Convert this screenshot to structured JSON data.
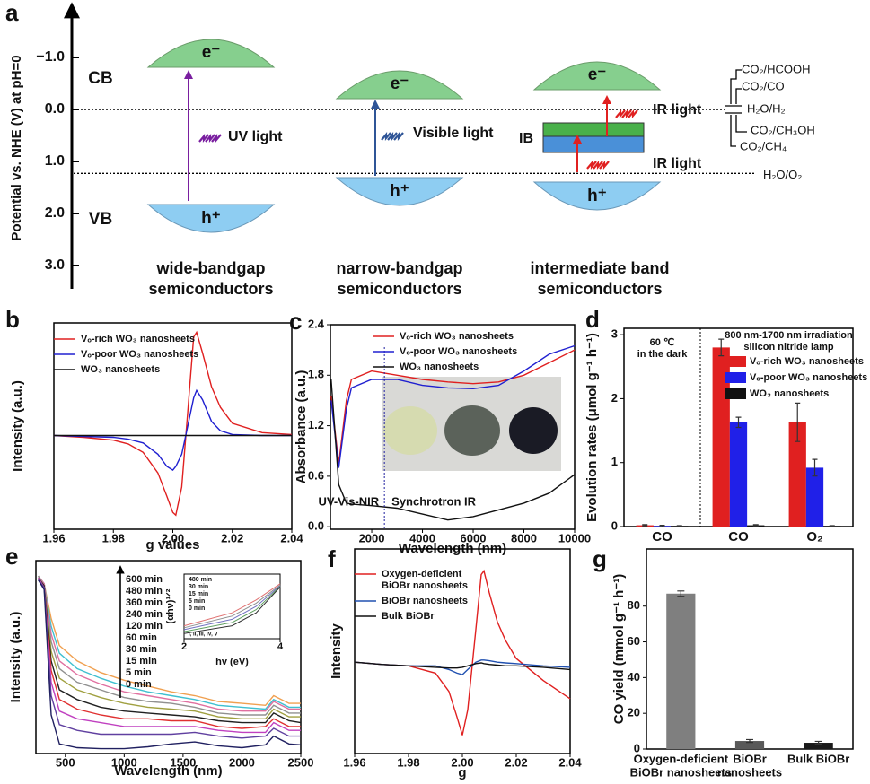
{
  "diagram": {
    "panel": "a",
    "axis_label": "Potential vs. NHE (V) at pH=0",
    "ticks": [
      {
        "value": -1,
        "label": "−1.0"
      },
      {
        "value": 0,
        "label": "0.0"
      },
      {
        "value": 1,
        "label": "1.0"
      },
      {
        "value": 2,
        "label": "2.0"
      },
      {
        "value": 3,
        "label": "3.0"
      }
    ],
    "cb": "CB",
    "vb": "VB",
    "electron": "e⁻",
    "hole": "h⁺",
    "semiconductors": [
      {
        "light": "UV light",
        "caption": [
          "wide-bandgap",
          "semiconductors"
        ]
      },
      {
        "light": "Visible light",
        "caption": [
          "narrow-bandgap",
          "semiconductors"
        ]
      },
      {
        "light": "IR light",
        "light2": "IR light",
        "ib": "IB",
        "caption": [
          "intermediate band",
          "semiconductors"
        ]
      }
    ],
    "potentials": [
      {
        "label": "H₂O/H₂",
        "value": 0
      },
      {
        "label": "H₂O/O₂",
        "value": 1.23
      }
    ],
    "couples": [
      "CO₂/HCOOH",
      "CO₂/CO",
      "CO₂/CH₃OH",
      "CO₂/CH₄"
    ]
  },
  "chart_data": [
    {
      "type": "line",
      "panel": "b",
      "xlabel": "g values",
      "ylabel": "Intensity (a.u.)",
      "legend": "upper left",
      "xlim": [
        1.96,
        2.04
      ],
      "xticks": [
        1.96,
        1.98,
        {
          "value": 2,
          "label": "2.00"
        },
        2.02,
        2.04
      ],
      "ylim": [
        -1,
        1.2
      ],
      "x": [
        1.96,
        1.97,
        1.98,
        1.985,
        1.99,
        1.995,
        1.998,
        2.0,
        2.001,
        2.003,
        2.005,
        2.007,
        2.008,
        2.01,
        2.013,
        2.016,
        2.02,
        2.03,
        2.04
      ],
      "series": [
        {
          "name": "Vₒ-rich WO₃ nanosheets",
          "color": "#e02020",
          "values": [
            0,
            -0.02,
            -0.05,
            -0.09,
            -0.18,
            -0.4,
            -0.65,
            -0.82,
            -0.85,
            -0.55,
            0.25,
            1.05,
            1.1,
            0.88,
            0.52,
            0.3,
            0.13,
            0.03,
            0.01
          ]
        },
        {
          "name": "Vₒ-poor WO₃ nanosheets",
          "color": "#2020d0",
          "values": [
            0,
            -0.01,
            -0.02,
            -0.04,
            -0.08,
            -0.2,
            -0.33,
            -0.37,
            -0.33,
            -0.2,
            0.1,
            0.4,
            0.48,
            0.38,
            0.15,
            0.05,
            0.01,
            0,
            0
          ]
        },
        {
          "name": "WO₃ nanosheets",
          "color": "#111111",
          "values": [
            0,
            0,
            0,
            0,
            0,
            0,
            0,
            0,
            0,
            0,
            0,
            0,
            0,
            0,
            0,
            0,
            0,
            0,
            0
          ]
        }
      ]
    },
    {
      "type": "line",
      "panel": "c",
      "xlabel": "Wavelength (nm)",
      "ylabel": "Absorbance (a.u.)",
      "legend": "upper right",
      "xlim": [
        370,
        10000
      ],
      "xticks": [
        2000,
        4000,
        6000,
        8000,
        10000
      ],
      "ylim": [
        -0.03,
        2.4
      ],
      "yticks": [
        {
          "value": 0,
          "label": "0.0"
        },
        0.6,
        1.2,
        1.8,
        2.4
      ],
      "annotations": [
        "UV-Vis-NIR",
        "Synchrotron IR"
      ],
      "divider": 2500,
      "x": [
        400,
        700,
        1000,
        1200,
        2000,
        3000,
        4000,
        5000,
        6000,
        7000,
        8000,
        9000,
        10000
      ],
      "series": [
        {
          "name": "Vₒ-rich WO₃ nanosheets",
          "color": "#e02020",
          "values": [
            1.55,
            0.75,
            1.5,
            1.75,
            1.85,
            1.8,
            1.75,
            1.72,
            1.7,
            1.72,
            1.8,
            1.95,
            2.1
          ]
        },
        {
          "name": "Vₒ-poor WO₃ nanosheets",
          "color": "#2020d0",
          "values": [
            1.5,
            0.7,
            1.4,
            1.65,
            1.75,
            1.75,
            1.68,
            1.65,
            1.64,
            1.68,
            1.85,
            2.05,
            2.15
          ]
        },
        {
          "name": "WO₃ nanosheets",
          "color": "#111111",
          "values": [
            1.75,
            0.5,
            0.28,
            0.27,
            0.25,
            0.22,
            0.15,
            0.08,
            0.12,
            0.2,
            0.28,
            0.4,
            0.62
          ]
        }
      ]
    },
    {
      "type": "bar",
      "panel": "d",
      "ylabel": "Evolution rates (μmol g⁻¹ h⁻¹)",
      "legend": "upper right",
      "legend_title": [
        "800 nm-1700 nm irradiation",
        "silicon nitride lamp"
      ],
      "annotations": [
        "60 ℃",
        "in the dark"
      ],
      "categories": [
        "CO",
        "CO",
        "O₂"
      ],
      "ylim": [
        0,
        3.1
      ],
      "yticks": [
        0,
        1,
        2,
        3
      ],
      "series": [
        {
          "name": "Vₒ-rich WO₃ nanosheets",
          "color": "#e02020",
          "values": [
            0.02,
            2.8,
            1.63
          ],
          "errors": [
            0.01,
            0.13,
            0.3
          ]
        },
        {
          "name": "Vₒ-poor WO₃ nanosheets",
          "color": "#2020e8",
          "values": [
            0.01,
            1.63,
            0.92
          ],
          "errors": [
            0.01,
            0.08,
            0.13
          ]
        },
        {
          "name": "WO₃ nanosheets",
          "color": "#111111",
          "values": [
            0.01,
            0.02,
            0.01
          ],
          "errors": [
            0.005,
            0.01,
            0.005
          ]
        }
      ]
    },
    {
      "type": "line",
      "panel": "e",
      "xlabel": "Wavelength (nm)",
      "ylabel": "Intensity (a.u.)",
      "legend": "upper center",
      "xlim": [
        250,
        2500
      ],
      "xticks": [
        500,
        1000,
        1500,
        2000,
        2500
      ],
      "ylim": [
        0,
        10
      ],
      "x": [
        270,
        320,
        380,
        450,
        600,
        800,
        1000,
        1200,
        1400,
        1600,
        1800,
        2000,
        2200,
        2270,
        2400,
        2500
      ],
      "series": [
        {
          "name": "600 min",
          "color": "#f0a050",
          "values": [
            9.2,
            8.8,
            7.0,
            5.6,
            4.8,
            4.2,
            3.8,
            3.5,
            3.2,
            3.0,
            2.7,
            2.6,
            2.5,
            3.0,
            2.6,
            2.6
          ]
        },
        {
          "name": "480 min",
          "color": "#40c0d0",
          "values": [
            9.2,
            8.8,
            6.6,
            5.2,
            4.4,
            3.9,
            3.5,
            3.2,
            3.0,
            2.8,
            2.5,
            2.4,
            2.3,
            2.8,
            2.4,
            2.4
          ]
        },
        {
          "name": "360 min",
          "color": "#e070a0",
          "values": [
            9.2,
            8.8,
            6.2,
            4.8,
            4.1,
            3.6,
            3.2,
            3.0,
            2.8,
            2.6,
            2.3,
            2.2,
            2.2,
            2.7,
            2.3,
            2.3
          ]
        },
        {
          "name": "240 min",
          "color": "#909090",
          "values": [
            9.2,
            8.7,
            5.8,
            4.4,
            3.7,
            3.3,
            2.9,
            2.7,
            2.6,
            2.4,
            2.1,
            2.0,
            2.0,
            2.5,
            2.1,
            2.1
          ]
        },
        {
          "name": "120 min",
          "color": "#a0a040",
          "values": [
            9.1,
            8.7,
            5.3,
            3.9,
            3.3,
            2.9,
            2.6,
            2.4,
            2.3,
            2.2,
            1.9,
            1.8,
            1.8,
            2.3,
            1.9,
            1.9
          ]
        },
        {
          "name": "60 min",
          "color": "#202020",
          "values": [
            9.1,
            8.7,
            4.8,
            3.3,
            2.8,
            2.4,
            2.2,
            2.1,
            2.0,
            1.9,
            1.7,
            1.6,
            1.6,
            2.1,
            1.7,
            1.6
          ]
        },
        {
          "name": "30 min",
          "color": "#e03030",
          "values": [
            9.1,
            8.6,
            4.3,
            2.8,
            2.3,
            2.0,
            1.8,
            1.8,
            1.7,
            1.7,
            1.4,
            1.3,
            1.4,
            1.8,
            1.4,
            1.4
          ]
        },
        {
          "name": "15 min",
          "color": "#c040c0",
          "values": [
            9.1,
            8.6,
            3.7,
            2.2,
            1.8,
            1.6,
            1.4,
            1.4,
            1.4,
            1.4,
            1.2,
            1.1,
            1.1,
            1.6,
            1.2,
            1.2
          ]
        },
        {
          "name": "5 min",
          "color": "#6040a0",
          "values": [
            9.0,
            8.6,
            3.0,
            1.5,
            1.2,
            1.0,
            1.0,
            1.0,
            1.0,
            1.1,
            0.9,
            0.8,
            0.9,
            1.3,
            0.9,
            0.9
          ]
        },
        {
          "name": "0 min",
          "color": "#202060",
          "values": [
            9.0,
            8.5,
            2.0,
            0.5,
            0.3,
            0.25,
            0.25,
            0.35,
            0.5,
            0.6,
            0.4,
            0.3,
            0.45,
            0.9,
            0.5,
            0.45
          ]
        }
      ]
    },
    {
      "type": "line",
      "xlabel": "hv (eV)",
      "ylabel": "(αhν)¹ᐟ²",
      "legend": "upper left",
      "annotations": [
        "I, II, III, IV, V"
      ],
      "xlim": [
        2,
        4
      ],
      "xticks": [
        2,
        4
      ],
      "ylim": [
        0,
        10
      ],
      "x": [
        2,
        3,
        3.5,
        4
      ],
      "series": [
        {
          "name": "480 min",
          "color": "#e07070",
          "values": [
            2,
            4,
            6,
            8.5
          ]
        },
        {
          "name": "30 min",
          "color": "#909090",
          "values": [
            1.7,
            3.5,
            5.5,
            8.3
          ]
        },
        {
          "name": "15 min",
          "color": "#7070c0",
          "values": [
            1.4,
            3,
            5,
            8.2
          ]
        },
        {
          "name": "5 min",
          "color": "#60a060",
          "values": [
            1.1,
            2.5,
            4.5,
            8.1
          ]
        },
        {
          "name": "0 min",
          "color": "#303030",
          "values": [
            0.8,
            2,
            4,
            8
          ]
        }
      ]
    },
    {
      "type": "line",
      "panel": "f",
      "xlabel": "g",
      "ylabel": "Intensity",
      "legend": "upper left",
      "xlim": [
        1.96,
        2.04
      ],
      "xticks": [
        1.96,
        1.98,
        {
          "value": 2,
          "label": "2.00"
        },
        2.02,
        2.04
      ],
      "ylim": [
        -1.2,
        1.6
      ],
      "x": [
        1.96,
        1.97,
        1.98,
        1.99,
        1.995,
        1.998,
        2.0,
        2.002,
        2.005,
        2.007,
        2.008,
        2.01,
        2.013,
        2.016,
        2.02,
        2.03,
        2.04
      ],
      "series": [
        {
          "name": [
            "Oxygen-deficient",
            "BiOBr nanosheets"
          ],
          "color": "#e02020",
          "values": [
            0.05,
            0.02,
            0,
            -0.1,
            -0.35,
            -0.7,
            -0.95,
            -0.6,
            0.5,
            1.25,
            1.3,
            1.0,
            0.6,
            0.35,
            0.1,
            -0.2,
            -0.45
          ]
        },
        {
          "name": "BiOBr nanosheets",
          "color": "#2050b0",
          "values": [
            0.05,
            0.02,
            0,
            0,
            -0.05,
            -0.1,
            -0.12,
            -0.05,
            0.05,
            0.08,
            0.08,
            0.07,
            0.05,
            0.04,
            0.03,
            0,
            -0.02
          ]
        },
        {
          "name": "Bulk BiOBr",
          "color": "#111111",
          "values": [
            0.05,
            0.02,
            0,
            -0.02,
            -0.03,
            -0.03,
            -0.02,
            0,
            0.03,
            0.04,
            0.03,
            0.02,
            0.01,
            0,
            0,
            -0.02,
            -0.05
          ]
        }
      ]
    },
    {
      "type": "bar",
      "panel": "g",
      "ylabel": "CO yield (mmol g⁻¹ h⁻¹)",
      "categories": [
        [
          "Oxygen-deficient",
          "BiOBr nanosheets"
        ],
        [
          "BiOBr",
          "nanosheets"
        ],
        [
          "Bulk BiOBr"
        ]
      ],
      "ylim": [
        0,
        112
      ],
      "yticks": [
        0,
        20,
        40,
        60,
        80
      ],
      "series": [
        {
          "colors": [
            "#7f7f7f",
            "#595959",
            "#1a1a1a"
          ],
          "values": [
            87,
            4.5,
            3.5
          ],
          "errors": [
            1.5,
            0.8,
            0.8
          ]
        }
      ]
    }
  ]
}
